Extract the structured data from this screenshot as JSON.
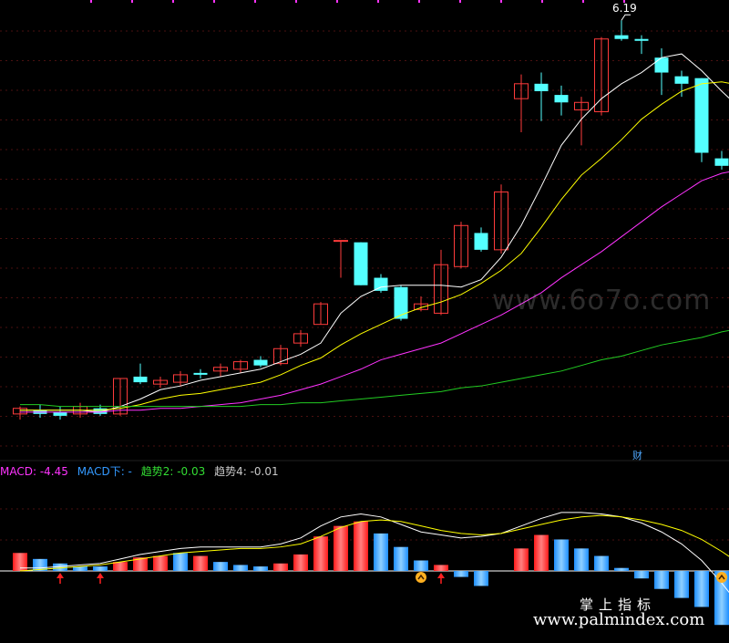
{
  "chart_data": [
    {
      "type": "candlestick",
      "title": "",
      "peak_label": "6.19",
      "peak_value": 6.19,
      "ylim": [
        4.05,
        6.25
      ],
      "colors": {
        "up": "#ff3b3b",
        "down": "#54ffff"
      },
      "candles": [
        {
          "o": 4.08,
          "h": 4.12,
          "l": 4.05,
          "c": 4.11
        },
        {
          "o": 4.1,
          "h": 4.13,
          "l": 4.06,
          "c": 4.08
        },
        {
          "o": 4.09,
          "h": 4.12,
          "l": 4.05,
          "c": 4.07
        },
        {
          "o": 4.08,
          "h": 4.14,
          "l": 4.06,
          "c": 4.12
        },
        {
          "o": 4.11,
          "h": 4.13,
          "l": 4.07,
          "c": 4.08
        },
        {
          "o": 4.08,
          "h": 4.27,
          "l": 4.07,
          "c": 4.27
        },
        {
          "o": 4.28,
          "h": 4.35,
          "l": 4.24,
          "c": 4.25
        },
        {
          "o": 4.24,
          "h": 4.28,
          "l": 4.22,
          "c": 4.26
        },
        {
          "o": 4.25,
          "h": 4.31,
          "l": 4.23,
          "c": 4.29
        },
        {
          "o": 4.3,
          "h": 4.32,
          "l": 4.27,
          "c": 4.29
        },
        {
          "o": 4.31,
          "h": 4.35,
          "l": 4.28,
          "c": 4.33
        },
        {
          "o": 4.32,
          "h": 4.37,
          "l": 4.3,
          "c": 4.36
        },
        {
          "o": 4.37,
          "h": 4.39,
          "l": 4.33,
          "c": 4.34
        },
        {
          "o": 4.35,
          "h": 4.45,
          "l": 4.34,
          "c": 4.43
        },
        {
          "o": 4.46,
          "h": 4.53,
          "l": 4.44,
          "c": 4.51
        },
        {
          "o": 4.56,
          "h": 4.68,
          "l": 4.56,
          "c": 4.67
        },
        {
          "o": 5.01,
          "h": 5.01,
          "l": 4.81,
          "c": 5.01
        },
        {
          "o": 5.0,
          "h": 5.0,
          "l": 4.77,
          "c": 4.77
        },
        {
          "o": 4.81,
          "h": 4.83,
          "l": 4.73,
          "c": 4.74
        },
        {
          "o": 4.76,
          "h": 4.77,
          "l": 4.58,
          "c": 4.59
        },
        {
          "o": 4.64,
          "h": 4.71,
          "l": 4.63,
          "c": 4.67
        },
        {
          "o": 4.62,
          "h": 4.96,
          "l": 4.61,
          "c": 4.88
        },
        {
          "o": 4.87,
          "h": 5.11,
          "l": 4.86,
          "c": 5.09
        },
        {
          "o": 5.05,
          "h": 5.08,
          "l": 4.95,
          "c": 4.96
        },
        {
          "o": 4.96,
          "h": 5.31,
          "l": 4.94,
          "c": 5.27
        },
        {
          "o": 5.77,
          "h": 5.9,
          "l": 5.59,
          "c": 5.85
        },
        {
          "o": 5.85,
          "h": 5.91,
          "l": 5.65,
          "c": 5.81
        },
        {
          "o": 5.79,
          "h": 5.84,
          "l": 5.68,
          "c": 5.75
        },
        {
          "o": 5.71,
          "h": 5.78,
          "l": 5.52,
          "c": 5.75
        },
        {
          "o": 5.7,
          "h": 6.1,
          "l": 5.68,
          "c": 6.09
        },
        {
          "o": 6.11,
          "h": 6.19,
          "l": 6.08,
          "c": 6.09
        },
        {
          "o": 6.09,
          "h": 6.11,
          "l": 6.01,
          "c": 6.08
        },
        {
          "o": 5.99,
          "h": 6.04,
          "l": 5.79,
          "c": 5.91
        },
        {
          "o": 5.89,
          "h": 5.92,
          "l": 5.78,
          "c": 5.85
        },
        {
          "o": 5.88,
          "h": 5.88,
          "l": 5.43,
          "c": 5.48
        },
        {
          "o": 5.45,
          "h": 5.49,
          "l": 5.39,
          "c": 5.41
        },
        {
          "o": 5.48,
          "h": 5.64,
          "l": 5.46,
          "c": 5.61
        }
      ],
      "ma_lines": [
        {
          "color": "#ffffff",
          "values": [
            4.1,
            4.1,
            4.1,
            4.1,
            4.09,
            4.12,
            4.16,
            4.21,
            4.23,
            4.26,
            4.28,
            4.3,
            4.32,
            4.36,
            4.4,
            4.46,
            4.62,
            4.71,
            4.76,
            4.77,
            4.77,
            4.77,
            4.76,
            4.8,
            4.92,
            5.09,
            5.3,
            5.52,
            5.66,
            5.77,
            5.85,
            5.91,
            5.99,
            6.01,
            5.92,
            5.81,
            5.71
          ]
        },
        {
          "color": "#ffff00",
          "values": [
            4.1,
            4.1,
            4.1,
            4.1,
            4.1,
            4.11,
            4.13,
            4.16,
            4.18,
            4.19,
            4.21,
            4.23,
            4.25,
            4.29,
            4.34,
            4.38,
            4.45,
            4.51,
            4.56,
            4.61,
            4.65,
            4.68,
            4.72,
            4.78,
            4.85,
            4.94,
            5.08,
            5.23,
            5.36,
            5.45,
            5.55,
            5.66,
            5.74,
            5.81,
            5.85,
            5.86,
            5.84
          ]
        },
        {
          "color": "#ff33ff",
          "values": [
            4.09,
            4.09,
            4.09,
            4.09,
            4.09,
            4.1,
            4.1,
            4.11,
            4.11,
            4.12,
            4.13,
            4.14,
            4.16,
            4.18,
            4.21,
            4.24,
            4.28,
            4.32,
            4.37,
            4.4,
            4.43,
            4.46,
            4.51,
            4.56,
            4.61,
            4.67,
            4.73,
            4.81,
            4.88,
            4.95,
            5.03,
            5.11,
            5.19,
            5.26,
            5.33,
            5.37,
            5.39
          ]
        },
        {
          "color": "#22cc22",
          "values": [
            4.13,
            4.13,
            4.12,
            4.12,
            4.12,
            4.12,
            4.12,
            4.12,
            4.12,
            4.12,
            4.12,
            4.12,
            4.13,
            4.13,
            4.14,
            4.14,
            4.15,
            4.16,
            4.17,
            4.18,
            4.19,
            4.2,
            4.22,
            4.23,
            4.25,
            4.27,
            4.29,
            4.31,
            4.34,
            4.37,
            4.39,
            4.42,
            4.45,
            4.47,
            4.49,
            4.52,
            4.54
          ]
        }
      ]
    },
    {
      "type": "bar",
      "title": "MACD",
      "legend": [
        {
          "label": "MACD: -4.45",
          "color": "#ff33ff"
        },
        {
          "label": "MACD下: -",
          "color": "#3399ff"
        },
        {
          "label": "趋势2: -0.03",
          "color": "#33dd33"
        },
        {
          "label": "趋势4: -0.01",
          "color": "#c8c8c8"
        }
      ],
      "ylim": [
        -4.5,
        4.0
      ],
      "colors": {
        "pos_red": "#ff1a1a",
        "pos_blue": "#1e8fff",
        "neg_blue": "#1e8fff"
      },
      "bars": [
        {
          "v": 1.2,
          "c": "red"
        },
        {
          "v": 0.8,
          "c": "blue"
        },
        {
          "v": 0.5,
          "c": "blue"
        },
        {
          "v": 0.3,
          "c": "blue"
        },
        {
          "v": 0.3,
          "c": "blue"
        },
        {
          "v": 0.6,
          "c": "red"
        },
        {
          "v": 0.9,
          "c": "red"
        },
        {
          "v": 1.0,
          "c": "red"
        },
        {
          "v": 1.2,
          "c": "blue"
        },
        {
          "v": 1.0,
          "c": "red"
        },
        {
          "v": 0.6,
          "c": "blue"
        },
        {
          "v": 0.4,
          "c": "blue"
        },
        {
          "v": 0.3,
          "c": "blue"
        },
        {
          "v": 0.5,
          "c": "red"
        },
        {
          "v": 1.1,
          "c": "red"
        },
        {
          "v": 2.3,
          "c": "red"
        },
        {
          "v": 3.0,
          "c": "red"
        },
        {
          "v": 3.3,
          "c": "red"
        },
        {
          "v": 2.5,
          "c": "blue"
        },
        {
          "v": 1.6,
          "c": "blue"
        },
        {
          "v": 0.7,
          "c": "blue"
        },
        {
          "v": 0.4,
          "c": "red"
        },
        {
          "v": -0.4,
          "c": "blue"
        },
        {
          "v": -1.0,
          "c": "blue"
        },
        {
          "v": 0,
          "c": "blue"
        },
        {
          "v": 1.5,
          "c": "red"
        },
        {
          "v": 2.4,
          "c": "red"
        },
        {
          "v": 2.1,
          "c": "blue"
        },
        {
          "v": 1.5,
          "c": "blue"
        },
        {
          "v": 1.0,
          "c": "blue"
        },
        {
          "v": 0.2,
          "c": "blue"
        },
        {
          "v": -0.5,
          "c": "blue"
        },
        {
          "v": -1.2,
          "c": "blue"
        },
        {
          "v": -1.8,
          "c": "blue"
        },
        {
          "v": -2.4,
          "c": "blue"
        },
        {
          "v": -3.6,
          "c": "blue"
        },
        {
          "v": -4.5,
          "c": "blue"
        }
      ],
      "lines": [
        {
          "color": "#ffffff",
          "values": [
            0.2,
            0.2,
            0.3,
            0.4,
            0.5,
            0.8,
            1.1,
            1.3,
            1.5,
            1.6,
            1.6,
            1.6,
            1.6,
            1.8,
            2.2,
            3.0,
            3.6,
            3.8,
            3.6,
            3.1,
            2.6,
            2.4,
            2.2,
            2.3,
            2.5,
            3.0,
            3.5,
            3.9,
            3.9,
            3.8,
            3.6,
            3.2,
            2.6,
            1.8,
            0.7,
            -0.8,
            -2.5
          ]
        },
        {
          "color": "#ffff00",
          "values": [
            0.0,
            0.1,
            0.2,
            0.3,
            0.4,
            0.6,
            0.8,
            1.0,
            1.2,
            1.3,
            1.4,
            1.5,
            1.5,
            1.6,
            1.8,
            2.3,
            2.9,
            3.3,
            3.4,
            3.3,
            3.0,
            2.7,
            2.5,
            2.4,
            2.5,
            2.8,
            3.1,
            3.4,
            3.6,
            3.7,
            3.6,
            3.4,
            3.1,
            2.7,
            2.1,
            1.3,
            0.4
          ]
        }
      ],
      "markers": [
        {
          "index": 2,
          "type": "up-arrow"
        },
        {
          "index": 4,
          "type": "up-arrow"
        },
        {
          "index": 20,
          "type": "circle-chevron"
        },
        {
          "index": 21,
          "type": "up-arrow"
        },
        {
          "index": 35,
          "type": "circle-chevron"
        }
      ]
    }
  ],
  "annotations": {
    "cai_label": "财"
  },
  "watermarks": {
    "site1": "www.6o7o.com",
    "site2_cn": "掌上指标",
    "site2": "www.palmindex.com"
  }
}
